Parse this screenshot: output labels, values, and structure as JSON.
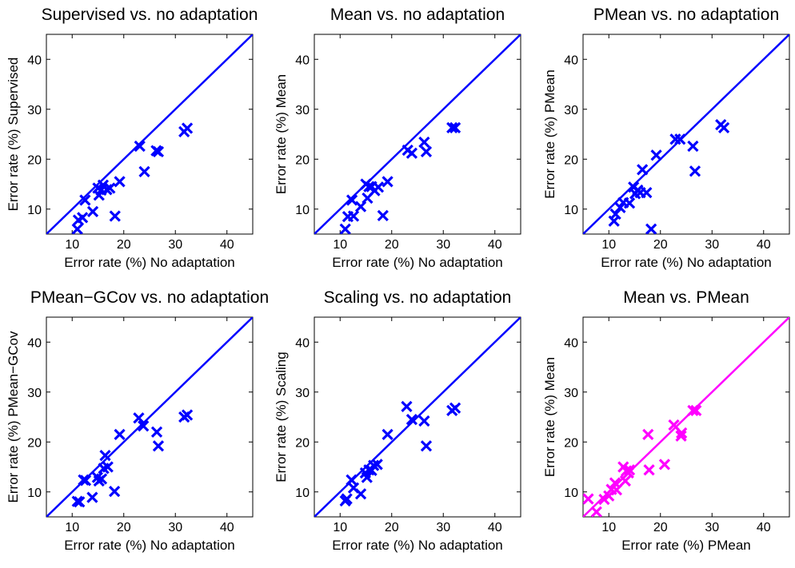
{
  "chart_data": [
    {
      "type": "scatter",
      "title": "Supervised vs. no adaptation",
      "xlabel": "Error rate (%) No adaptation",
      "ylabel": "Error rate (%) Supervised",
      "xlim": [
        5,
        45
      ],
      "ylim": [
        5,
        45
      ],
      "xticks": [
        "10",
        "20",
        "30",
        "40"
      ],
      "yticks": [
        "10",
        "20",
        "30",
        "40"
      ],
      "color": "#0000ff",
      "marker": "x",
      "diagonal": true,
      "grid": false,
      "points": [
        [
          11,
          6
        ],
        [
          11.2,
          7.8
        ],
        [
          12,
          8.3
        ],
        [
          12.5,
          11.8
        ],
        [
          14,
          9.5
        ],
        [
          15,
          14.2
        ],
        [
          15.2,
          12.8
        ],
        [
          15.6,
          13.8
        ],
        [
          16,
          14.8
        ],
        [
          16.7,
          13.9
        ],
        [
          17.3,
          14.2
        ],
        [
          18.3,
          8.6
        ],
        [
          19.2,
          15.5
        ],
        [
          23.1,
          22.6
        ],
        [
          24,
          17.5
        ],
        [
          26.3,
          21.7
        ],
        [
          26.7,
          21.5
        ],
        [
          31.7,
          25.5
        ],
        [
          32.3,
          26.2
        ]
      ]
    },
    {
      "type": "scatter",
      "title": "Mean vs. no adaptation",
      "xlabel": "Error rate (%) No adaptation",
      "ylabel": "Error rate (%) Mean",
      "xlim": [
        5,
        45
      ],
      "ylim": [
        5,
        45
      ],
      "xticks": [
        "10",
        "20",
        "30",
        "40"
      ],
      "yticks": [
        "10",
        "20",
        "30",
        "40"
      ],
      "color": "#0000ff",
      "marker": "x",
      "diagonal": true,
      "grid": false,
      "points": [
        [
          11,
          6
        ],
        [
          11.5,
          8.5
        ],
        [
          12.3,
          11.8
        ],
        [
          12.6,
          8.6
        ],
        [
          14,
          10.5
        ],
        [
          15,
          15
        ],
        [
          15.3,
          12.2
        ],
        [
          15.6,
          14.5
        ],
        [
          16.1,
          14.5
        ],
        [
          16.7,
          13.7
        ],
        [
          17.4,
          14.4
        ],
        [
          18.3,
          8.7
        ],
        [
          19.2,
          15.5
        ],
        [
          23.1,
          21.8
        ],
        [
          23.9,
          21.2
        ],
        [
          26.3,
          23.4
        ],
        [
          26.7,
          21.5
        ],
        [
          31.7,
          26.3
        ],
        [
          32.3,
          26.3
        ]
      ]
    },
    {
      "type": "scatter",
      "title": "PMean vs. no adaptation",
      "xlabel": "Error rate (%) No adaptation",
      "ylabel": "Error rate (%) PMean",
      "xlim": [
        5,
        45
      ],
      "ylim": [
        5,
        45
      ],
      "xticks": [
        "10",
        "20",
        "30",
        "40"
      ],
      "yticks": [
        "10",
        "20",
        "30",
        "40"
      ],
      "color": "#0000ff",
      "marker": "x",
      "diagonal": true,
      "grid": false,
      "points": [
        [
          11,
          7.6
        ],
        [
          11.3,
          9
        ],
        [
          12.2,
          10.3
        ],
        [
          12.8,
          11.3
        ],
        [
          14,
          11.2
        ],
        [
          14.8,
          14.4
        ],
        [
          15.1,
          13.1
        ],
        [
          15.6,
          13.8
        ],
        [
          16.1,
          13.3
        ],
        [
          16.5,
          17.9
        ],
        [
          17.3,
          13.3
        ],
        [
          18.2,
          6
        ],
        [
          19.2,
          20.8
        ],
        [
          22.9,
          24
        ],
        [
          23.8,
          24
        ],
        [
          26.3,
          22.6
        ],
        [
          26.7,
          17.6
        ],
        [
          31.7,
          26.9
        ],
        [
          32.3,
          26.3
        ]
      ]
    },
    {
      "type": "scatter",
      "title": "PMean−GCov vs. no adaptation",
      "xlabel": "Error rate (%) No adaptation",
      "ylabel": "Error rate (%) PMean−GCov",
      "xlim": [
        5,
        45
      ],
      "ylim": [
        5,
        45
      ],
      "xticks": [
        "10",
        "20",
        "30",
        "40"
      ],
      "yticks": [
        "10",
        "20",
        "30",
        "40"
      ],
      "color": "#0000ff",
      "marker": "x",
      "diagonal": true,
      "grid": false,
      "points": [
        [
          11,
          8.1
        ],
        [
          11.4,
          8
        ],
        [
          12.2,
          12.4
        ],
        [
          12.6,
          12.3
        ],
        [
          13.9,
          8.9
        ],
        [
          14.9,
          12.9
        ],
        [
          15.2,
          12.2
        ],
        [
          15.7,
          12.6
        ],
        [
          16.1,
          14.7
        ],
        [
          16.4,
          17.3
        ],
        [
          16.9,
          15
        ],
        [
          18.2,
          10.1
        ],
        [
          19.2,
          21.5
        ],
        [
          22.9,
          24.8
        ],
        [
          23.8,
          23.2
        ],
        [
          26.4,
          22
        ],
        [
          26.7,
          19.2
        ],
        [
          31.7,
          25
        ],
        [
          32.3,
          25.4
        ]
      ]
    },
    {
      "type": "scatter",
      "title": "Scaling vs. no adaptation",
      "xlabel": "Error rate (%) No adaptation",
      "ylabel": "Error rate (%) Scaling",
      "xlim": [
        5,
        45
      ],
      "ylim": [
        5,
        45
      ],
      "xticks": [
        "10",
        "20",
        "30",
        "40"
      ],
      "yticks": [
        "10",
        "20",
        "30",
        "40"
      ],
      "color": "#0000ff",
      "marker": "x",
      "diagonal": true,
      "grid": false,
      "points": [
        [
          11,
          8.2
        ],
        [
          11.3,
          8.6
        ],
        [
          12.2,
          12.4
        ],
        [
          12.6,
          10.8
        ],
        [
          14,
          9.6
        ],
        [
          14.9,
          13.8
        ],
        [
          15.2,
          12.9
        ],
        [
          15.6,
          14.4
        ],
        [
          16.1,
          14.3
        ],
        [
          16.5,
          15.3
        ],
        [
          17.2,
          15.5
        ],
        [
          19.2,
          21.5
        ],
        [
          22.9,
          27.1
        ],
        [
          23.9,
          24.5
        ],
        [
          26.3,
          24.2
        ],
        [
          26.7,
          19.2
        ],
        [
          31.7,
          26.3
        ],
        [
          32.3,
          26.8
        ]
      ]
    },
    {
      "type": "scatter",
      "title": "Mean vs. PMean",
      "xlabel": "Error rate (%) PMean",
      "ylabel": "Error rate (%) Mean",
      "xlim": [
        5,
        45
      ],
      "ylim": [
        5,
        45
      ],
      "xticks": [
        "10",
        "20",
        "30",
        "40"
      ],
      "yticks": [
        "10",
        "20",
        "30",
        "40"
      ],
      "color": "#ff00ff",
      "marker": "x",
      "diagonal": true,
      "grid": false,
      "points": [
        [
          6,
          8.6
        ],
        [
          7.6,
          6
        ],
        [
          9.1,
          8.5
        ],
        [
          10,
          9.2
        ],
        [
          10.5,
          10.5
        ],
        [
          11.2,
          11.8
        ],
        [
          11.5,
          10.4
        ],
        [
          12.8,
          15
        ],
        [
          13.2,
          12.2
        ],
        [
          13.4,
          14.2
        ],
        [
          13.8,
          13.8
        ],
        [
          14,
          14.4
        ],
        [
          17.6,
          21.5
        ],
        [
          17.8,
          14.4
        ],
        [
          20.8,
          15.5
        ],
        [
          22.6,
          23.4
        ],
        [
          24,
          21.2
        ],
        [
          24.1,
          21.8
        ],
        [
          26.3,
          26.3
        ],
        [
          26.9,
          26.3
        ]
      ]
    }
  ]
}
